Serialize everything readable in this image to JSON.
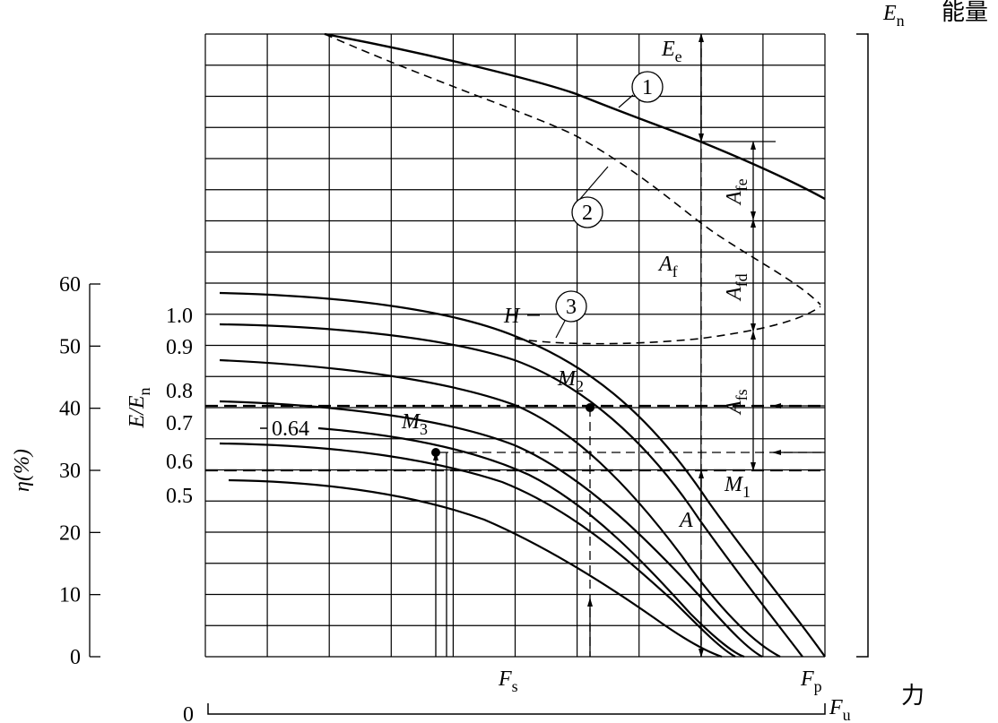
{
  "header": {
    "energy_symbol": {
      "main": "E",
      "sub": "n"
    },
    "energy_label": "能量"
  },
  "axes": {
    "eta_label": "η(%)",
    "eta_ticks": [
      "60",
      "50",
      "40",
      "30",
      "20",
      "10",
      "0"
    ],
    "ratio_label": {
      "main": "E/E",
      "sub": "n"
    },
    "ratio_ticks": [
      "1.0",
      "0.9",
      "0.8",
      "0.7",
      "0.6",
      "0.5"
    ],
    "force_label": "力",
    "force_origin": "0"
  },
  "labels": {
    "Ee": {
      "main": "E",
      "sub": "e"
    },
    "Afe": {
      "main": "A",
      "sub": "fe"
    },
    "Af": {
      "main": "A",
      "sub": "f"
    },
    "Afd": {
      "main": "A",
      "sub": "fd"
    },
    "Afs": {
      "main": "A",
      "sub": "fs"
    },
    "A": "A",
    "H": "H",
    "M1": {
      "main": "M",
      "sub": "1"
    },
    "M2": {
      "main": "M",
      "sub": "2"
    },
    "M3": {
      "main": "M",
      "sub": "3"
    },
    "ratio_064": "0.64",
    "curve1": "1",
    "curve2": "2",
    "curve3": "3",
    "Fs": {
      "main": "F",
      "sub": "s"
    },
    "Fp": {
      "main": "F",
      "sub": "p"
    },
    "Fu": {
      "main": "F",
      "sub": "u"
    }
  }
}
